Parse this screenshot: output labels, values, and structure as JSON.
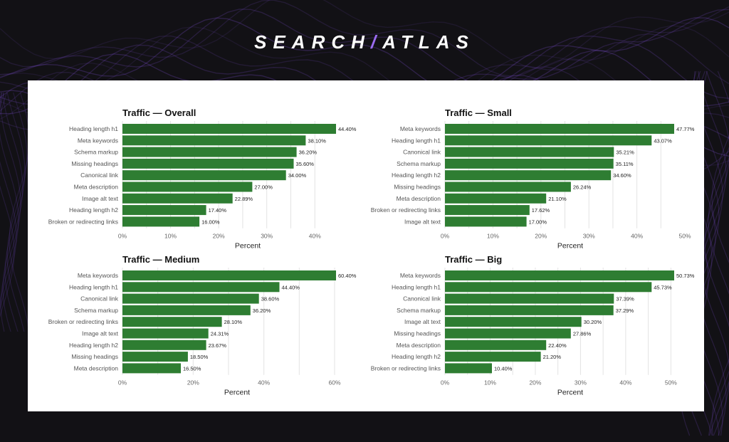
{
  "brand": {
    "left": "SEARCH",
    "slash": "/",
    "right": "ATLAS"
  },
  "colors": {
    "bar": "#2e7d32",
    "background": "#121115",
    "accent": "#7a4fd0",
    "panel": "#ffffff"
  },
  "chart_data": [
    {
      "type": "bar",
      "orientation": "horizontal",
      "title": "Traffic — Overall",
      "xlabel": "Percent",
      "categories": [
        "Heading length h1",
        "Meta keywords",
        "Schema markup",
        "Missing headings",
        "Canonical link",
        "Meta description",
        "Image alt text",
        "Heading length h2",
        "Broken or redirecting links"
      ],
      "values": [
        44.4,
        38.1,
        36.2,
        35.6,
        34.0,
        27.0,
        22.89,
        17.4,
        16.0
      ],
      "value_labels": [
        "44.40%",
        "38.10%",
        "36.20%",
        "35.60%",
        "34.00%",
        "27.00%",
        "22.89%",
        "17.40%",
        "16.00%"
      ],
      "xticks": [
        0,
        10,
        20,
        30,
        40
      ],
      "xtick_labels": [
        "0%",
        "10%",
        "20%",
        "30%",
        "40%"
      ],
      "xlim": [
        0,
        44.4
      ],
      "grid": true
    },
    {
      "type": "bar",
      "orientation": "horizontal",
      "title": "Traffic — Small",
      "xlabel": "Percent",
      "categories": [
        "Meta keywords",
        "Heading length h1",
        "Canonical link",
        "Schema markup",
        "Heading length h2",
        "Missing headings",
        "Meta description",
        "Broken or redirecting links",
        "Image alt text"
      ],
      "values": [
        47.77,
        43.07,
        35.21,
        35.11,
        34.6,
        26.24,
        21.1,
        17.62,
        17.0
      ],
      "value_labels": [
        "47.77%",
        "43.07%",
        "35.21%",
        "35.11%",
        "34.60%",
        "26.24%",
        "21.10%",
        "17.62%",
        "17.00%"
      ],
      "xticks": [
        0,
        10,
        20,
        30,
        40,
        50
      ],
      "xtick_labels": [
        "0%",
        "10%",
        "20%",
        "30%",
        "40%",
        "50%"
      ],
      "xlim": [
        0,
        47.77
      ],
      "grid": true
    },
    {
      "type": "bar",
      "orientation": "horizontal",
      "title": "Traffic — Medium",
      "xlabel": "Percent",
      "categories": [
        "Meta keywords",
        "Heading length h1",
        "Canonical link",
        "Schema markup",
        "Broken or redirecting links",
        "Image alt text",
        "Heading length h2",
        "Missing headings",
        "Meta description"
      ],
      "values": [
        60.4,
        44.4,
        38.6,
        36.2,
        28.1,
        24.31,
        23.67,
        18.5,
        16.5
      ],
      "value_labels": [
        "60.40%",
        "44.40%",
        "38.60%",
        "36.20%",
        "28.10%",
        "24.31%",
        "23.67%",
        "18.50%",
        "16.50%"
      ],
      "xticks": [
        0,
        20,
        40,
        60
      ],
      "xtick_labels": [
        "0%",
        "20%",
        "40%",
        "60%"
      ],
      "xlim": [
        0,
        60.4
      ],
      "grid": true
    },
    {
      "type": "bar",
      "orientation": "horizontal",
      "title": "Traffic — Big",
      "xlabel": "Percent",
      "categories": [
        "Meta keywords",
        "Heading length h1",
        "Canonical link",
        "Schema markup",
        "Image alt text",
        "Missing headings",
        "Meta description",
        "Heading length h2",
        "Broken or redirecting links"
      ],
      "values": [
        50.73,
        45.73,
        37.39,
        37.29,
        30.2,
        27.86,
        22.4,
        21.2,
        10.4
      ],
      "value_labels": [
        "50.73%",
        "45.73%",
        "37.39%",
        "37.29%",
        "30.20%",
        "27.86%",
        "22.40%",
        "21.20%",
        "10.40%"
      ],
      "xticks": [
        0,
        10,
        20,
        30,
        40,
        50
      ],
      "xtick_labels": [
        "0%",
        "10%",
        "20%",
        "30%",
        "40%",
        "50%"
      ],
      "xlim": [
        0,
        50.73
      ],
      "grid": true
    }
  ]
}
